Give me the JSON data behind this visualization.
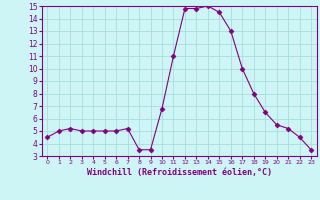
{
  "x": [
    0,
    1,
    2,
    3,
    4,
    5,
    6,
    7,
    8,
    9,
    10,
    11,
    12,
    13,
    14,
    15,
    16,
    17,
    18,
    19,
    20,
    21,
    22,
    23
  ],
  "y": [
    4.5,
    5.0,
    5.2,
    5.0,
    5.0,
    5.0,
    5.0,
    5.2,
    3.5,
    3.5,
    6.8,
    11.0,
    14.8,
    14.8,
    15.0,
    14.5,
    13.0,
    10.0,
    8.0,
    6.5,
    5.5,
    5.2,
    4.5,
    3.5
  ],
  "line_color": "#800080",
  "marker": "D",
  "marker_size": 2.5,
  "bg_color": "#cef5f5",
  "grid_color": "#aadddd",
  "xlabel": "Windchill (Refroidissement éolien,°C)",
  "xlabel_color": "#800080",
  "tick_color": "#800080",
  "spine_color": "#800080",
  "xlim": [
    -0.5,
    23.5
  ],
  "ylim": [
    3,
    15
  ],
  "yticks": [
    3,
    4,
    5,
    6,
    7,
    8,
    9,
    10,
    11,
    12,
    13,
    14,
    15
  ],
  "figsize": [
    3.2,
    2.0
  ],
  "dpi": 100
}
